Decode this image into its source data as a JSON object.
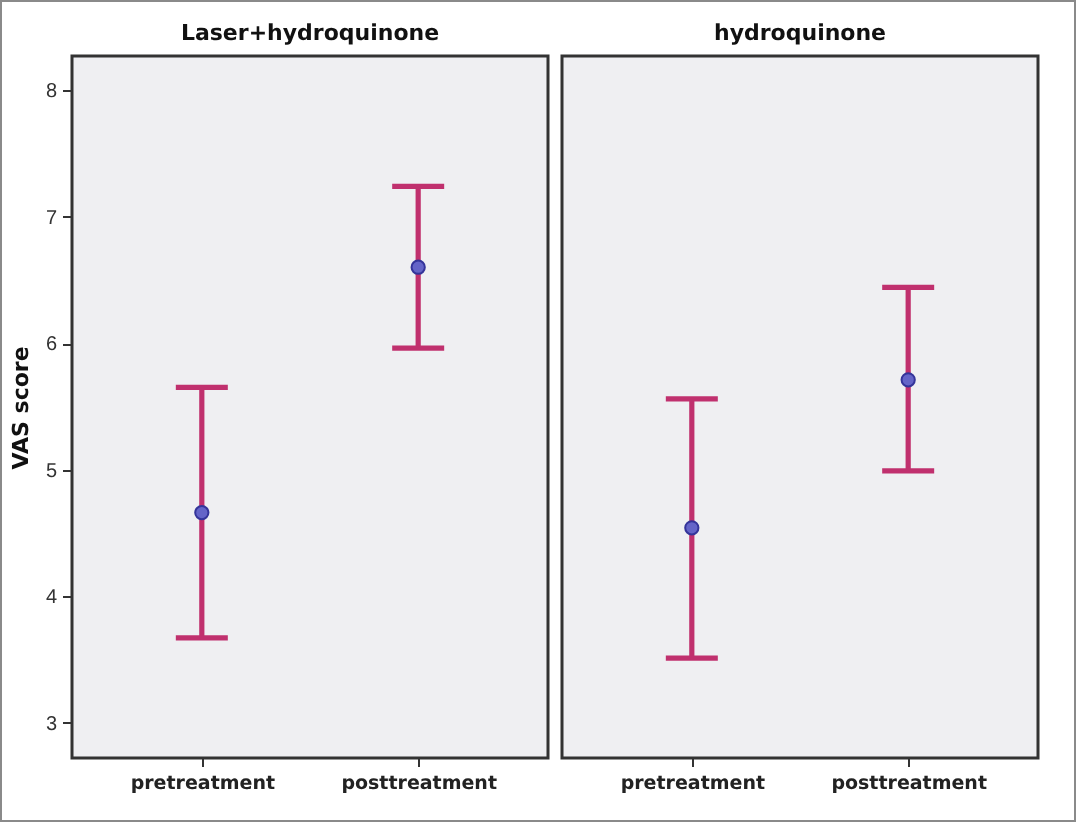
{
  "chart_data": [
    {
      "type": "scatter",
      "title": "Laser+hydroquinone",
      "ylabel": "VAS score",
      "categories": [
        "pretreatment",
        "posttreatment"
      ],
      "series": [
        {
          "color": "#6464c8",
          "values": [
            4.66,
            6.6
          ],
          "errors": [
            [
              3.67,
              5.65
            ],
            [
              5.96,
              7.24
            ]
          ]
        }
      ],
      "ylim": [
        2.72,
        8.27
      ],
      "yticks": [
        3,
        4,
        5,
        6,
        7,
        8
      ],
      "marker": "circle"
    },
    {
      "type": "scatter",
      "title": "hydroquinone",
      "categories": [
        "pretreatment",
        "posttreatment"
      ],
      "series": [
        {
          "color": "#6464c8",
          "values": [
            4.54,
            5.71
          ],
          "errors": [
            [
              3.51,
              5.56
            ],
            [
              4.99,
              6.44
            ]
          ]
        }
      ],
      "ylim": [
        2.72,
        8.27
      ],
      "tick_labels": "x",
      "marker": "circle"
    }
  ]
}
